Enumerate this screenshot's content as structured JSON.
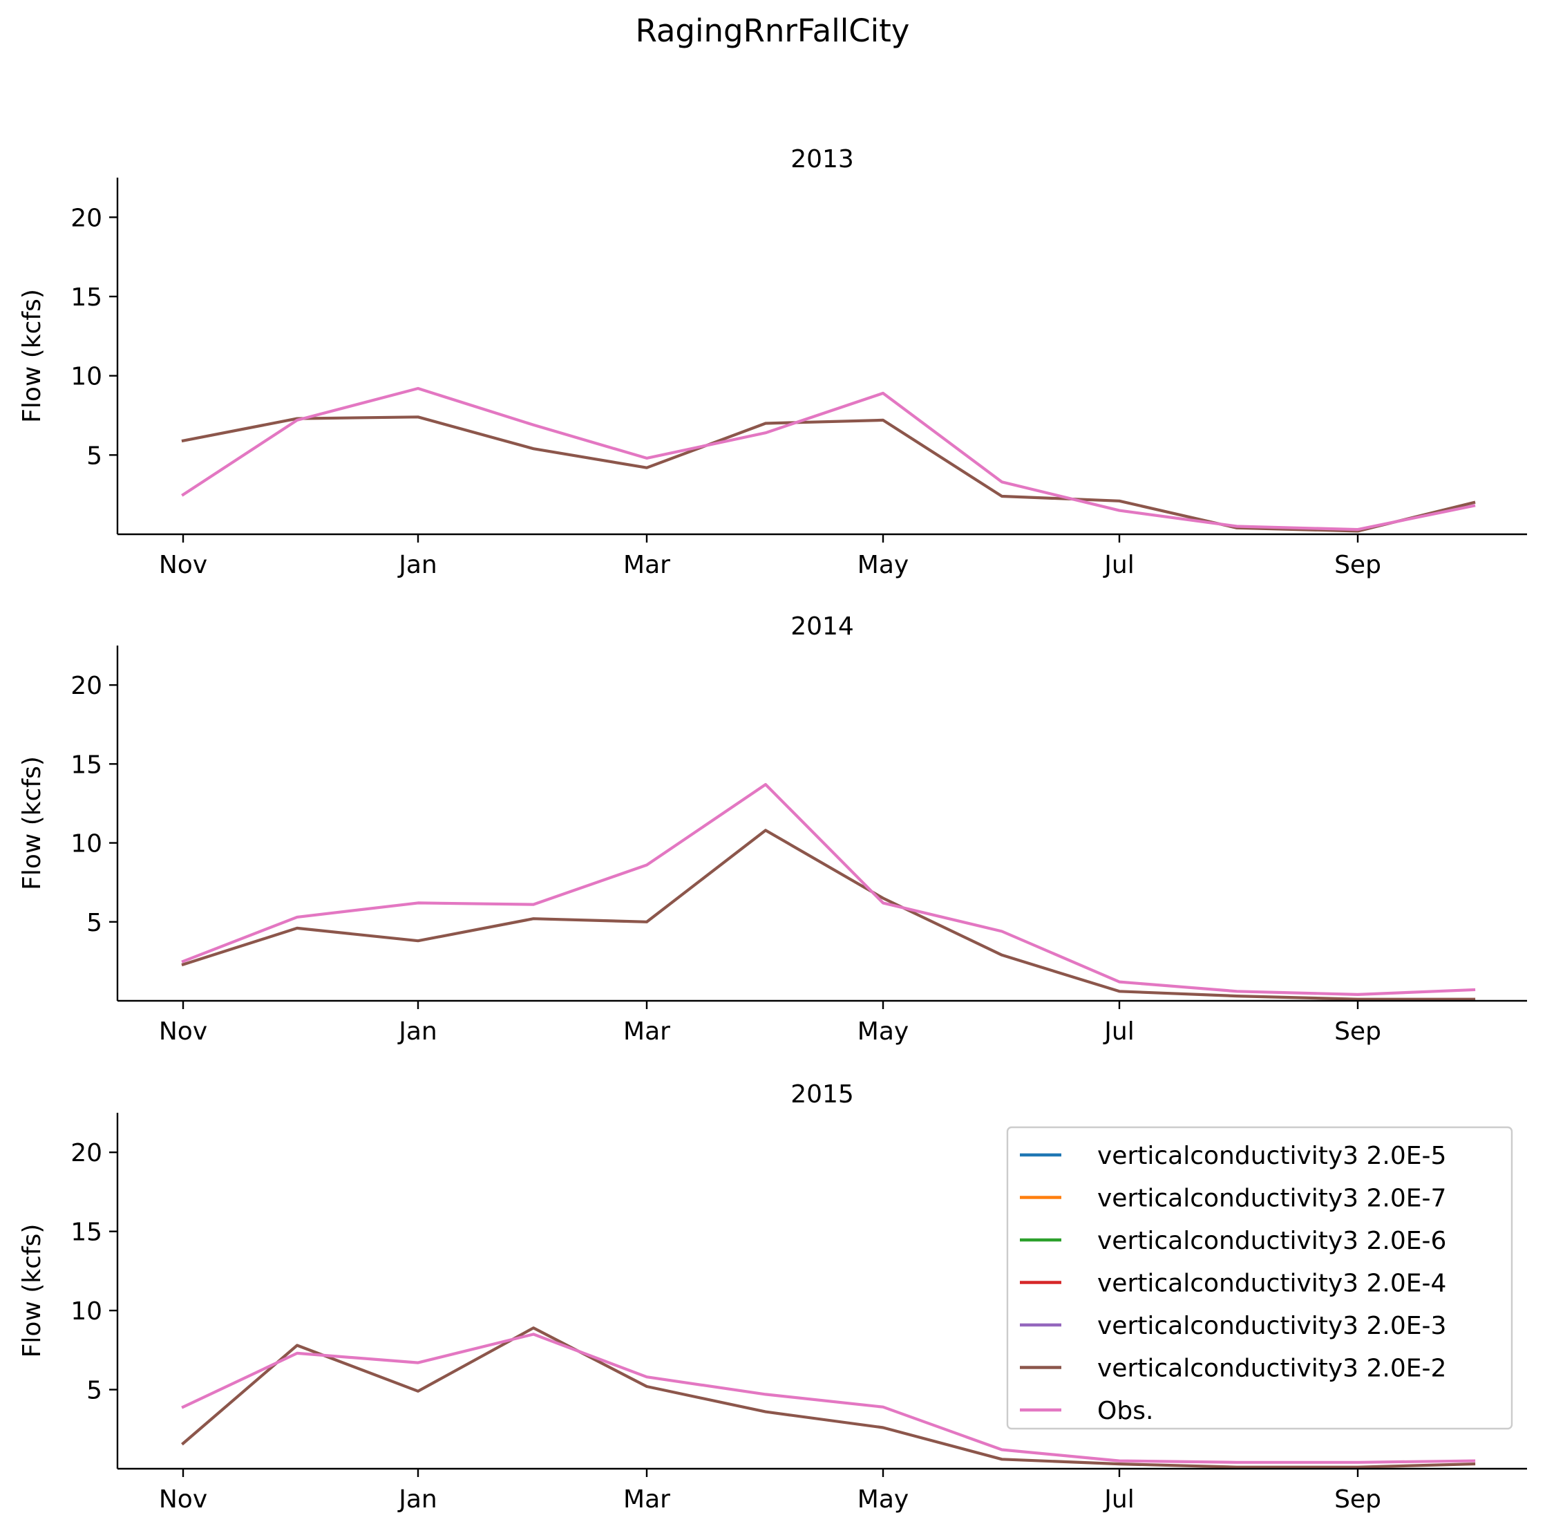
{
  "figure": {
    "title": "RagingRnrFallCity"
  },
  "x_ticks": [
    "Nov",
    "Jan",
    "Mar",
    "May",
    "Jul",
    "Sep"
  ],
  "y_ticks": [
    5,
    10,
    15,
    20
  ],
  "legend": {
    "placement": "upper right of last subplot",
    "entries": [
      {
        "name": "verticalconductivity3 2.0E-5",
        "color": "#1f77b4"
      },
      {
        "name": "verticalconductivity3 2.0E-7",
        "color": "#ff7f0e"
      },
      {
        "name": "verticalconductivity3 2.0E-6",
        "color": "#2ca02c"
      },
      {
        "name": "verticalconductivity3 2.0E-4",
        "color": "#d62728"
      },
      {
        "name": "verticalconductivity3 2.0E-3",
        "color": "#9467bd"
      },
      {
        "name": "verticalconductivity3 2.0E-2",
        "color": "#8c564b"
      },
      {
        "name": "Obs.",
        "color": "#e377c2"
      }
    ]
  },
  "chart_data": [
    {
      "type": "line",
      "title": "2013",
      "xlabel": "",
      "ylabel": "Flow (kcfs)",
      "ylim": [
        0,
        22.5
      ],
      "x": [
        "2012-11-01",
        "2012-12-01",
        "2013-01-01",
        "2013-02-01",
        "2013-03-01",
        "2013-04-01",
        "2013-05-01",
        "2013-06-01",
        "2013-07-01",
        "2013-08-01",
        "2013-09-01",
        "2013-10-01"
      ],
      "series": [
        {
          "name": "verticalconductivity3 2.0E-2",
          "color": "#8c564b",
          "values": [
            5.9,
            7.3,
            7.4,
            5.4,
            4.2,
            7.0,
            7.2,
            2.4,
            2.1,
            0.4,
            0.2,
            2.0
          ]
        },
        {
          "name": "Obs.",
          "color": "#e377c2",
          "values": [
            2.5,
            7.2,
            9.2,
            6.9,
            4.8,
            6.4,
            8.9,
            3.3,
            1.5,
            0.5,
            0.3,
            1.8
          ]
        }
      ]
    },
    {
      "type": "line",
      "title": "2014",
      "xlabel": "",
      "ylabel": "Flow (kcfs)",
      "ylim": [
        0,
        22.5
      ],
      "x": [
        "2013-11-01",
        "2013-12-01",
        "2014-01-01",
        "2014-02-01",
        "2014-03-01",
        "2014-04-01",
        "2014-05-01",
        "2014-06-01",
        "2014-07-01",
        "2014-08-01",
        "2014-09-01",
        "2014-10-01"
      ],
      "series": [
        {
          "name": "verticalconductivity3 2.0E-2",
          "color": "#8c564b",
          "values": [
            2.3,
            4.6,
            3.8,
            5.2,
            5.0,
            10.8,
            6.5,
            2.9,
            0.6,
            0.3,
            0.1,
            0.1
          ]
        },
        {
          "name": "Obs.",
          "color": "#e377c2",
          "values": [
            2.5,
            5.3,
            6.2,
            6.1,
            8.6,
            13.7,
            6.2,
            4.4,
            1.2,
            0.6,
            0.4,
            0.7
          ]
        }
      ]
    },
    {
      "type": "line",
      "title": "2015",
      "xlabel": "",
      "ylabel": "Flow (kcfs)",
      "ylim": [
        0,
        22.5
      ],
      "x": [
        "2014-11-01",
        "2014-12-01",
        "2015-01-01",
        "2015-02-01",
        "2015-03-01",
        "2015-04-01",
        "2015-05-01",
        "2015-06-01",
        "2015-07-01",
        "2015-08-01",
        "2015-09-01",
        "2015-10-01"
      ],
      "series": [
        {
          "name": "verticalconductivity3 2.0E-2",
          "color": "#8c564b",
          "values": [
            1.6,
            7.8,
            4.9,
            8.9,
            5.2,
            3.6,
            2.6,
            0.6,
            0.3,
            0.1,
            0.1,
            0.3
          ]
        },
        {
          "name": "Obs.",
          "color": "#e377c2",
          "values": [
            3.9,
            7.3,
            6.7,
            8.5,
            5.8,
            4.7,
            3.9,
            1.2,
            0.5,
            0.4,
            0.4,
            0.5
          ]
        }
      ]
    }
  ]
}
